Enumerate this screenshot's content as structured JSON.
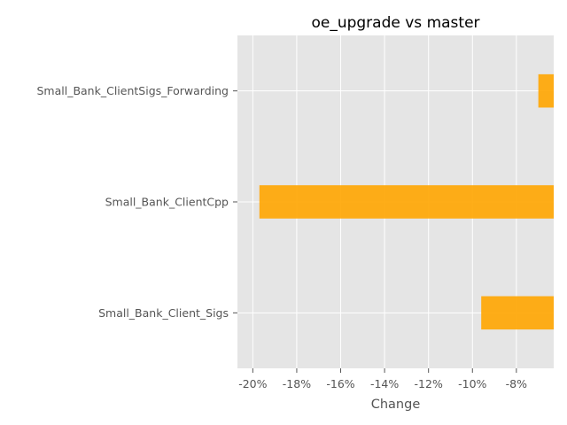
{
  "chart_data": {
    "type": "bar",
    "orientation": "horizontal",
    "title": "oe_upgrade vs master",
    "xlabel": "Change",
    "ylabel": "",
    "categories": [
      "Small_Bank_ClientSigs_Forwarding",
      "Small_Bank_ClientCpp",
      "Small_Bank_Client_Sigs"
    ],
    "values": [
      -7.0,
      -19.7,
      -9.6
    ],
    "xlim": [
      -20.7,
      -6.3
    ],
    "xticks": [
      -20,
      -18,
      -16,
      -14,
      -12,
      -10,
      -8
    ],
    "xtick_labels": [
      "-20%",
      "-18%",
      "-16%",
      "-14%",
      "-12%",
      "-10%",
      "-8%"
    ],
    "grid": true,
    "bar_color": "#ffa500",
    "background_color": "#e5e5e5",
    "grid_color": "#ffffff"
  }
}
